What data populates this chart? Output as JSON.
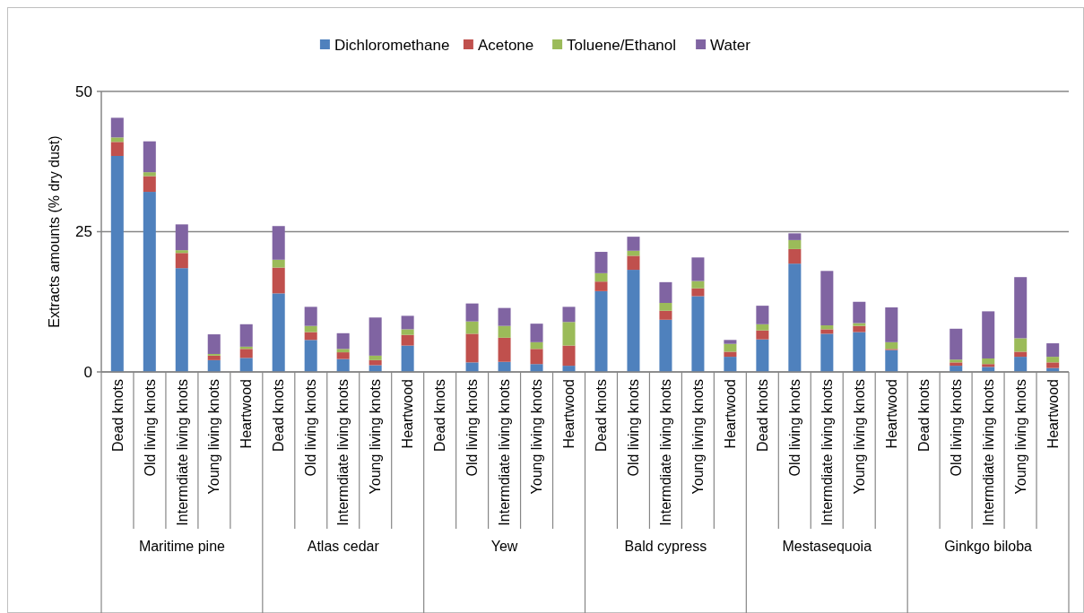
{
  "chart_data": {
    "type": "bar",
    "stacked": true,
    "ylabel": "Extracts amounts (% dry dust)",
    "categories": [
      "Dead knots",
      "Old living knots",
      "Intermdiate living knots",
      "Young living knots",
      "Heartwood",
      "Dead knots",
      "Old living knots",
      "Intermdiate living knots",
      "Young living knots",
      "Heartwood",
      "Dead knots",
      "Old living knots",
      "Intermdiate living knots",
      "Young living knots",
      "Heartwood",
      "Dead knots",
      "Old living knots",
      "Intermdiate living knots",
      "Young living knots",
      "Heartwood",
      "Dead knots",
      "Old living knots",
      "Intermdiate living knots",
      "Young living knots",
      "Heartwood",
      "Dead knots",
      "Old living knots",
      "Intermdiate living knots",
      "Young living knots",
      "Heartwood"
    ],
    "annotations": [
      "Maritime pine",
      "Atlas cedar",
      "Yew",
      "Bald cypress",
      "Mestasequoia",
      "Ginkgo biloba"
    ],
    "series": [
      {
        "name": "Dichloromethane",
        "color": "#4f81bd",
        "values": [
          38.5,
          32.1,
          18.5,
          2.1,
          2.5,
          14.0,
          5.7,
          2.3,
          1.2,
          4.7,
          null,
          1.7,
          1.8,
          1.4,
          1.1,
          14.4,
          18.2,
          9.3,
          13.5,
          2.7,
          5.8,
          19.3,
          6.8,
          7.1,
          3.9,
          null,
          1.1,
          0.9,
          2.7,
          0.7
        ]
      },
      {
        "name": "Acetone",
        "color": "#c0504d",
        "values": [
          2.5,
          2.8,
          2.7,
          0.8,
          1.6,
          4.6,
          1.4,
          1.2,
          0.9,
          1.9,
          null,
          5.1,
          4.3,
          2.7,
          3.6,
          1.7,
          2.5,
          1.6,
          1.4,
          0.9,
          1.6,
          2.6,
          0.8,
          1.1,
          0.2,
          null,
          0.6,
          0.5,
          0.9,
          1.0
        ]
      },
      {
        "name": "Toluene/Ethanol",
        "color": "#9bbb59",
        "values": [
          0.8,
          0.7,
          0.5,
          0.3,
          0.4,
          1.4,
          1.1,
          0.6,
          0.8,
          1.0,
          null,
          2.2,
          2.1,
          1.2,
          4.2,
          1.5,
          0.9,
          1.4,
          1.3,
          1.4,
          1.1,
          1.6,
          0.7,
          0.5,
          1.2,
          null,
          0.5,
          1.0,
          2.4,
          1.0
        ]
      },
      {
        "name": "Water",
        "color": "#8064a2",
        "values": [
          3.5,
          5.5,
          4.6,
          3.5,
          4.0,
          6.0,
          3.4,
          2.8,
          6.8,
          2.4,
          null,
          3.2,
          3.2,
          3.3,
          2.7,
          3.8,
          2.5,
          3.7,
          4.2,
          0.7,
          3.3,
          1.2,
          9.7,
          3.8,
          6.2,
          null,
          5.5,
          8.4,
          10.9,
          2.4
        ]
      }
    ],
    "ylim": [
      0,
      50
    ],
    "yticks": [
      0,
      25,
      50
    ],
    "grid": "y",
    "legend": "top"
  }
}
